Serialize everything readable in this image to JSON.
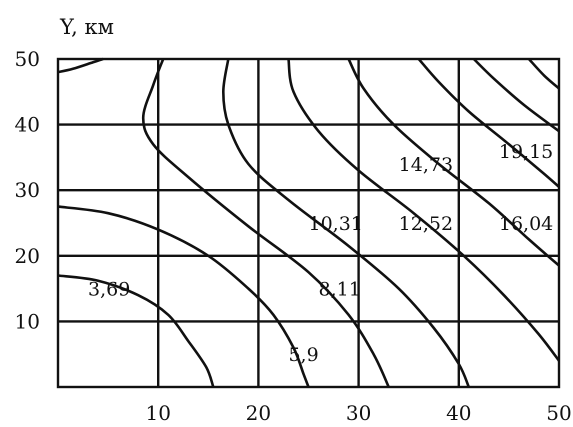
{
  "chart_data": {
    "type": "contour",
    "title": "",
    "xlabel": "",
    "ylabel": "Y, км",
    "xlim": [
      0,
      50
    ],
    "ylim": [
      0,
      50
    ],
    "x_ticks": [
      "10",
      "20",
      "30",
      "40",
      "50"
    ],
    "y_ticks": [
      "10",
      "20",
      "30",
      "40",
      "50"
    ],
    "grid": true,
    "contour_labels": [
      {
        "text": "3,69",
        "x": 3,
        "y": 15
      },
      {
        "text": "5,9",
        "x": 23,
        "y": 5
      },
      {
        "text": "8,11",
        "x": 26,
        "y": 15
      },
      {
        "text": "10,31",
        "x": 25,
        "y": 25
      },
      {
        "text": "12,52",
        "x": 34,
        "y": 25
      },
      {
        "text": "14,73",
        "x": 34,
        "y": 34
      },
      {
        "text": "16,04",
        "x": 44,
        "y": 25
      },
      {
        "text": "19,15",
        "x": 44,
        "y": 36
      }
    ],
    "contour_lines": [
      [
        [
          0,
          48
        ],
        [
          1.5,
          48.5
        ],
        [
          3.5,
          49.5
        ],
        [
          4.5,
          50
        ]
      ],
      [
        [
          0,
          17
        ],
        [
          4,
          16.2
        ],
        [
          8,
          14
        ],
        [
          11,
          11
        ],
        [
          13,
          7
        ],
        [
          14.8,
          3
        ],
        [
          15.5,
          0
        ]
      ],
      [
        [
          0,
          27.5
        ],
        [
          5,
          26.5
        ],
        [
          10,
          24
        ],
        [
          15,
          20
        ],
        [
          19,
          15
        ],
        [
          21.5,
          11
        ],
        [
          23.5,
          6
        ],
        [
          24.5,
          2
        ],
        [
          25,
          0
        ]
      ],
      [
        [
          10.5,
          50
        ],
        [
          9.5,
          46
        ],
        [
          8.5,
          41
        ],
        [
          9.5,
          37
        ],
        [
          13,
          32
        ],
        [
          19,
          24.5
        ],
        [
          25,
          17.5
        ],
        [
          29,
          11
        ],
        [
          31.5,
          5
        ],
        [
          33,
          0
        ]
      ],
      [
        [
          17,
          50
        ],
        [
          16.5,
          45
        ],
        [
          17,
          40
        ],
        [
          19,
          34
        ],
        [
          23,
          28.5
        ],
        [
          29,
          21.5
        ],
        [
          34,
          15
        ],
        [
          37.5,
          9
        ],
        [
          40,
          3.5
        ],
        [
          41,
          0
        ]
      ],
      [
        [
          23,
          50
        ],
        [
          23.5,
          45
        ],
        [
          26,
          39
        ],
        [
          30,
          33
        ],
        [
          35.5,
          26.5
        ],
        [
          40.5,
          20
        ],
        [
          44.5,
          14
        ],
        [
          48,
          8
        ],
        [
          50,
          4
        ]
      ],
      [
        [
          29,
          50
        ],
        [
          30.5,
          45.5
        ],
        [
          33.5,
          40
        ],
        [
          38,
          34
        ],
        [
          43,
          28
        ],
        [
          47,
          22.5
        ],
        [
          50,
          18.5
        ]
      ],
      [
        [
          36,
          50
        ],
        [
          38,
          46.5
        ],
        [
          41,
          42
        ],
        [
          45,
          37
        ],
        [
          48.5,
          32.5
        ],
        [
          50,
          30.5
        ]
      ],
      [
        [
          41.5,
          50
        ],
        [
          43.5,
          47
        ],
        [
          46.5,
          43
        ],
        [
          50,
          39
        ]
      ],
      [
        [
          47,
          50
        ],
        [
          48.5,
          47.5
        ],
        [
          50,
          45.5
        ]
      ]
    ]
  }
}
